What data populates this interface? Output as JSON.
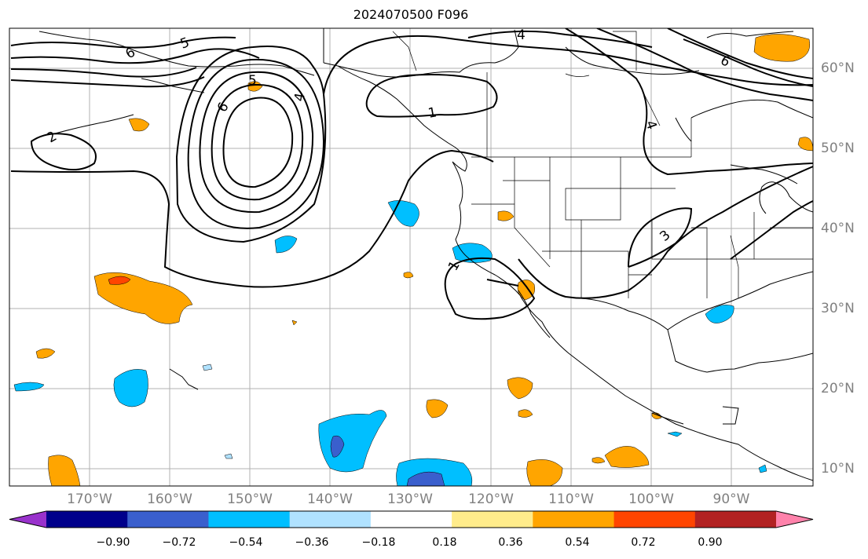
{
  "title": "2024070500 F096",
  "lat_labels": [
    "60°N",
    "50°N",
    "40°N",
    "30°N",
    "20°N",
    "10°N"
  ],
  "lon_labels": [
    "170°W",
    "160°W",
    "150°W",
    "140°W",
    "130°W",
    "120°W",
    "110°W",
    "100°W",
    "90°W"
  ],
  "contour_labels": [
    "6",
    "5",
    "4",
    "5",
    "6",
    "2",
    "4",
    "1",
    "6",
    "1",
    "3",
    "4"
  ],
  "colorbar": {
    "ticks": [
      "−0.90",
      "−0.72",
      "−0.54",
      "−0.36",
      "−0.18",
      "0.18",
      "0.36",
      "0.54",
      "0.72",
      "0.90"
    ],
    "colors": [
      "#9932cc",
      "#00008b",
      "#3a5fcd",
      "#00bfff",
      "#b0e2ff",
      "#ffffff",
      "#ffec8b",
      "#ffa500",
      "#ff4500",
      "#b22222",
      "#ff82ab"
    ]
  },
  "colors": {
    "contour": "#000000",
    "coast": "#000000",
    "grid": "#b0b0b0",
    "axis_label": "#808080"
  }
}
